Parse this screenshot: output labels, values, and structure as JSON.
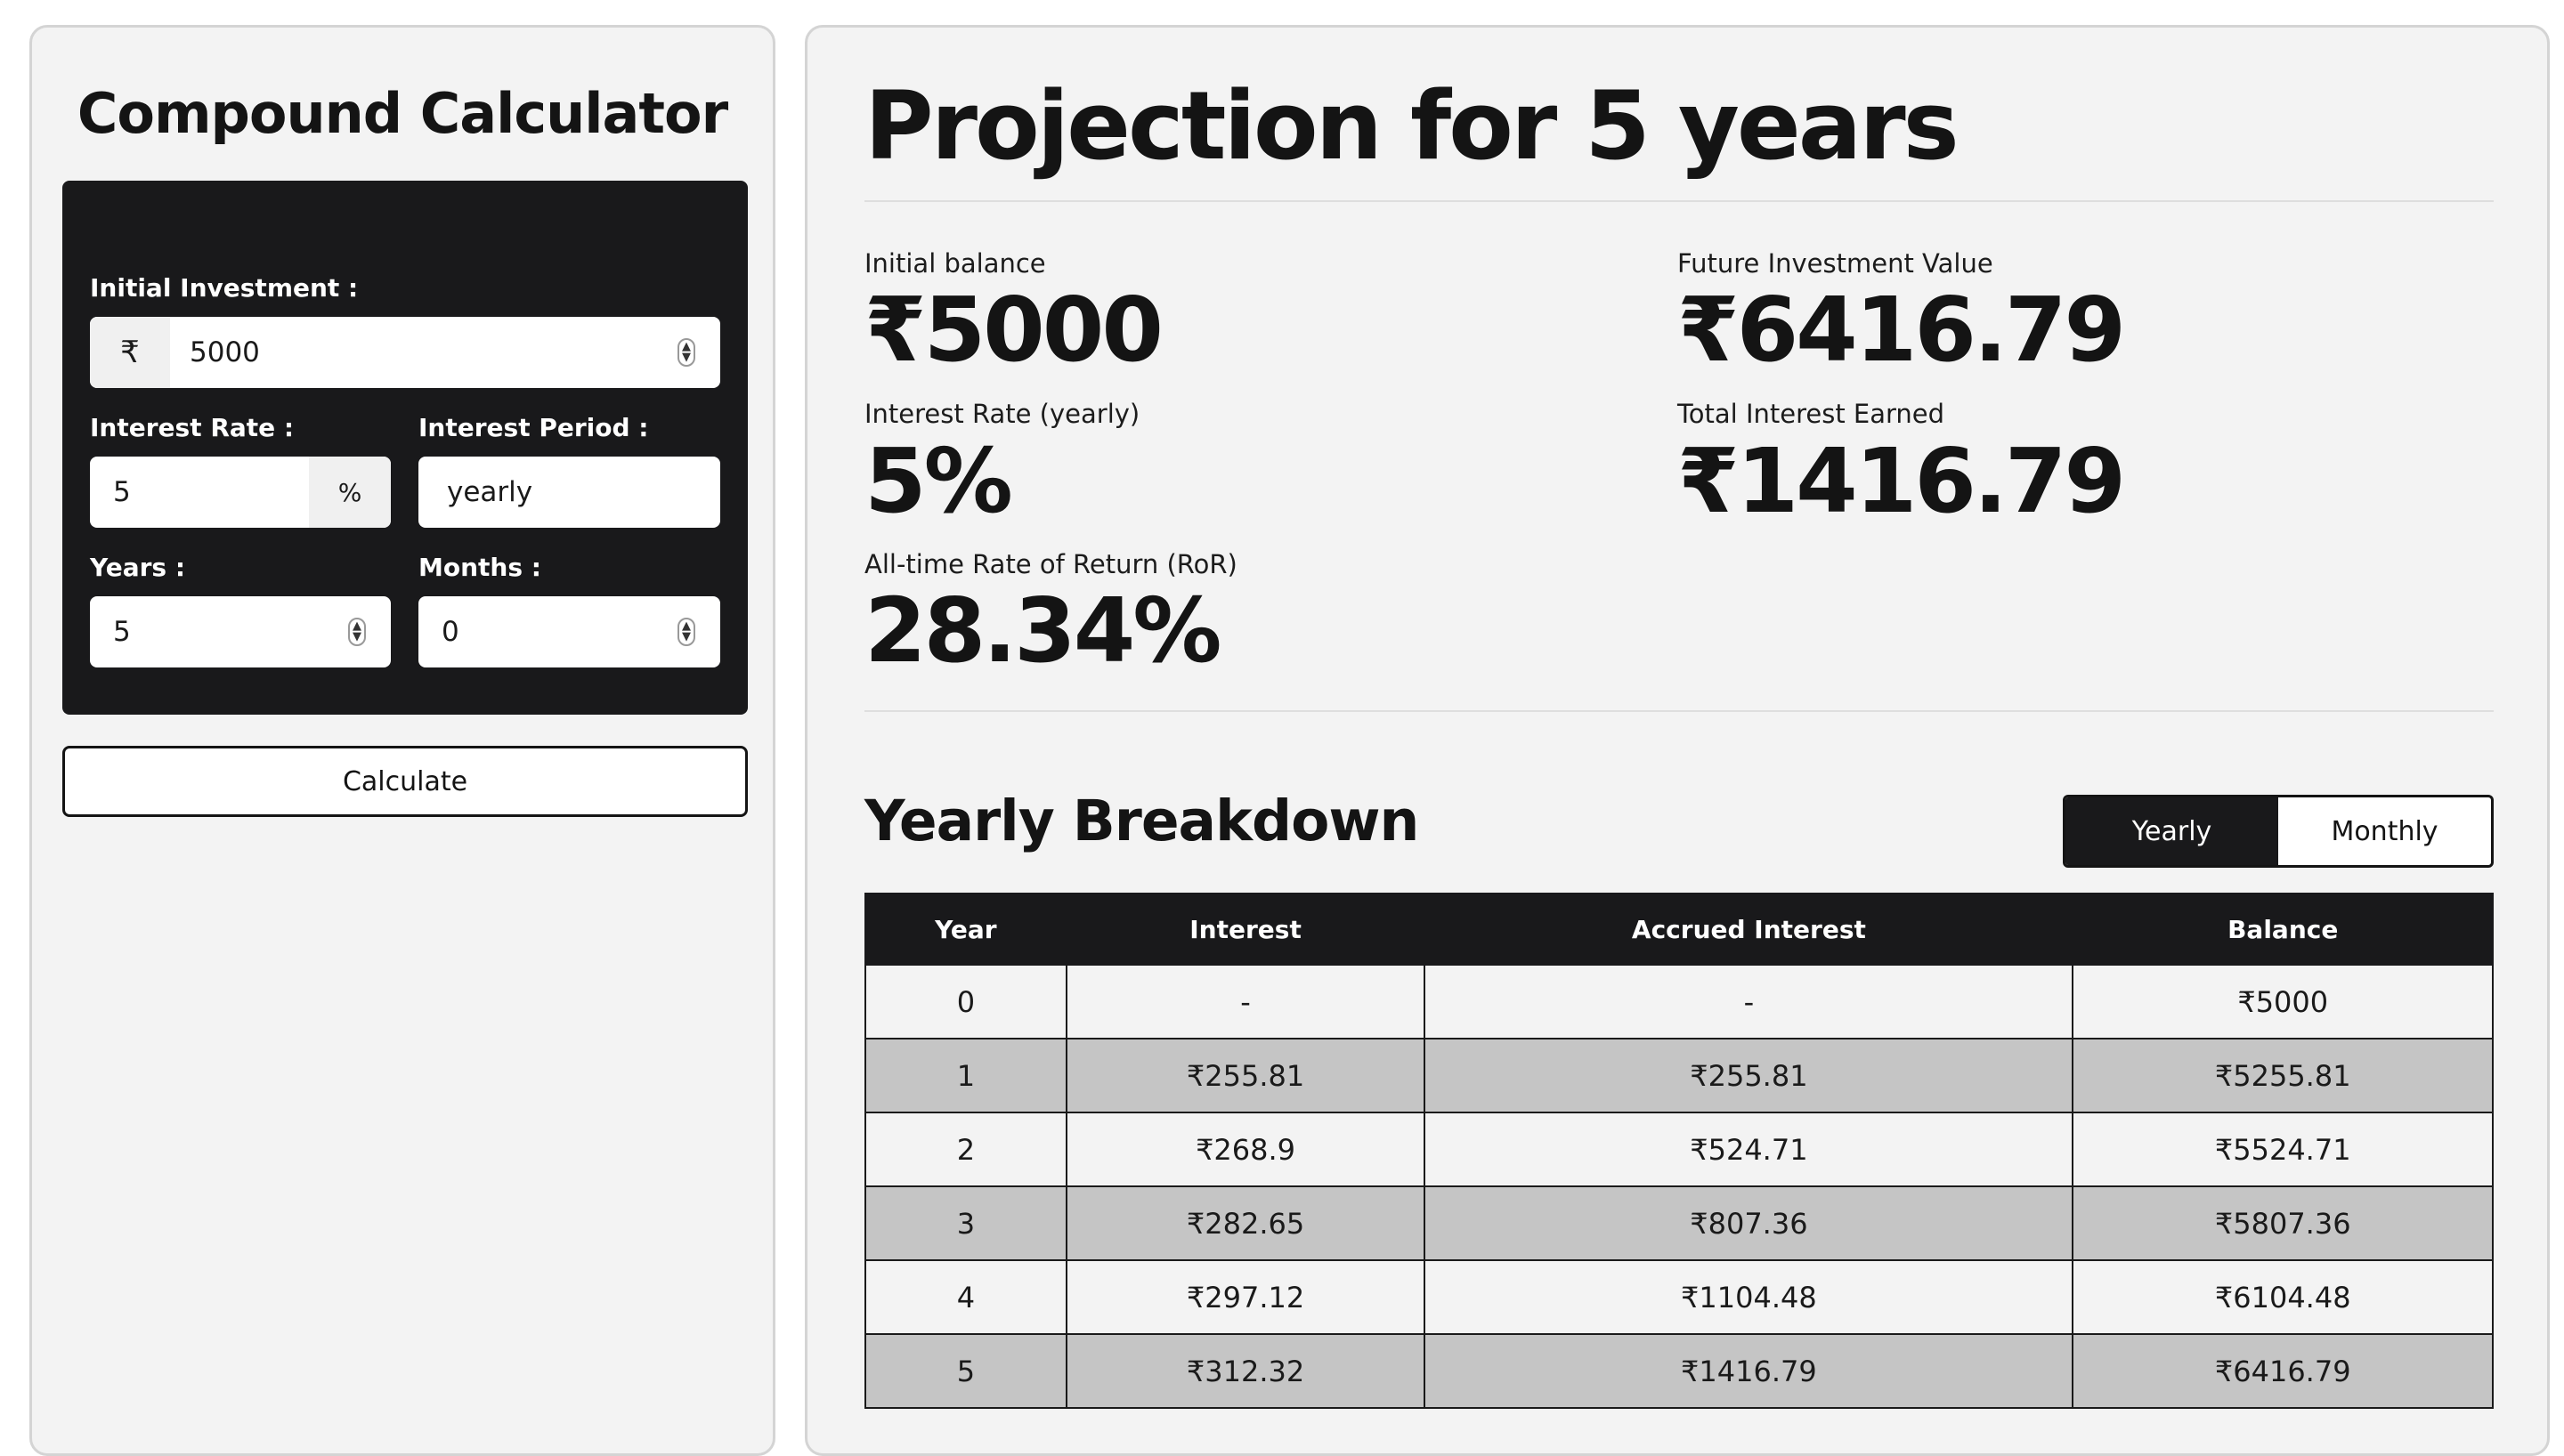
{
  "calculator": {
    "title": "Compound Calculator",
    "labels": {
      "initial_investment": "Initial Investment :",
      "interest_rate": "Interest Rate :",
      "interest_period": "Interest Period :",
      "years": "Years :",
      "months": "Months :"
    },
    "fields": {
      "currency_symbol": "₹",
      "initial_investment": "5000",
      "interest_rate": "5",
      "percent_symbol": "%",
      "interest_period": "yearly",
      "years": "5",
      "months": "0"
    },
    "calculate_label": "Calculate"
  },
  "projection": {
    "title": "Projection for 5 years",
    "stats": {
      "initial_balance": {
        "label": "Initial balance",
        "value": "₹5000"
      },
      "future_value": {
        "label": "Future Investment Value",
        "value": "₹6416.79"
      },
      "interest_rate": {
        "label": "Interest Rate (yearly)",
        "value": "5%"
      },
      "total_interest": {
        "label": "Total Interest Earned",
        "value": "₹1416.79"
      },
      "ror": {
        "label": "All-time Rate of Return (RoR)",
        "value": "28.34%"
      }
    }
  },
  "breakdown": {
    "title": "Yearly Breakdown",
    "toggle": {
      "yearly": "Yearly",
      "monthly": "Monthly",
      "active": "yearly"
    },
    "columns": [
      "Year",
      "Interest",
      "Accrued Interest",
      "Balance"
    ],
    "rows": [
      [
        "0",
        "-",
        "-",
        "₹5000"
      ],
      [
        "1",
        "₹255.81",
        "₹255.81",
        "₹5255.81"
      ],
      [
        "2",
        "₹268.9",
        "₹524.71",
        "₹5524.71"
      ],
      [
        "3",
        "₹282.65",
        "₹807.36",
        "₹5807.36"
      ],
      [
        "4",
        "₹297.12",
        "₹1104.48",
        "₹6104.48"
      ],
      [
        "5",
        "₹312.32",
        "₹1416.79",
        "₹6416.79"
      ]
    ]
  }
}
